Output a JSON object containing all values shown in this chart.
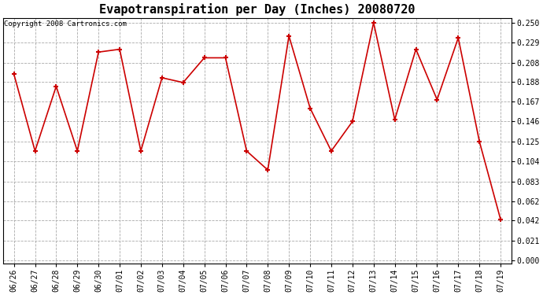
{
  "title": "Evapotranspiration per Day (Inches) 20080720",
  "copyright_text": "Copyright 2008 Cartronics.com",
  "x_labels": [
    "06/26",
    "06/27",
    "06/28",
    "06/29",
    "06/30",
    "07/01",
    "07/02",
    "07/03",
    "07/04",
    "07/05",
    "07/06",
    "07/07",
    "07/08",
    "07/09",
    "07/10",
    "07/11",
    "07/12",
    "07/13",
    "07/14",
    "07/15",
    "07/16",
    "07/17",
    "07/18",
    "07/19"
  ],
  "y_values": [
    0.196,
    0.115,
    0.183,
    0.115,
    0.219,
    0.222,
    0.115,
    0.192,
    0.187,
    0.213,
    0.213,
    0.115,
    0.095,
    0.236,
    0.16,
    0.115,
    0.146,
    0.25,
    0.148,
    0.222,
    0.169,
    0.234,
    0.125,
    0.043
  ],
  "line_color": "#cc0000",
  "marker": "+",
  "marker_size": 5,
  "marker_edge_width": 1.5,
  "line_width": 1.2,
  "background_color": "#ffffff",
  "plot_bg_color": "#ffffff",
  "grid_color": "#aaaaaa",
  "y_min": 0.0,
  "y_max": 0.25,
  "y_ticks": [
    0.0,
    0.021,
    0.042,
    0.062,
    0.083,
    0.104,
    0.125,
    0.146,
    0.167,
    0.188,
    0.208,
    0.229,
    0.25
  ],
  "title_fontsize": 11,
  "tick_fontsize": 7,
  "copyright_fontsize": 6.5
}
